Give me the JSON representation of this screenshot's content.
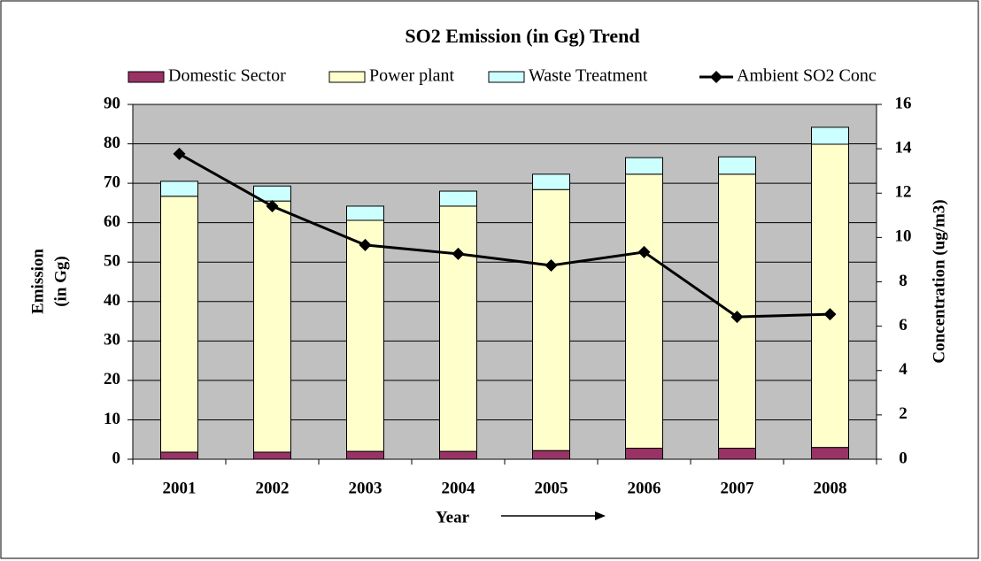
{
  "chart_data": {
    "type": "bar_line",
    "title": "SO2 Emission (in Gg) Trend",
    "x_label": "Year",
    "y_label": [
      "Emission",
      "(in Gg)"
    ],
    "y2_label": "Concentration (ug/m3)",
    "categories": [
      "2001",
      "2002",
      "2003",
      "2004",
      "2005",
      "2006",
      "2007",
      "2008"
    ],
    "series": [
      {
        "name": "Domestic Sector",
        "color": "#993366",
        "values": [
          1.8,
          1.8,
          2.0,
          2.0,
          2.2,
          2.8,
          2.8,
          3.0
        ]
      },
      {
        "name": "Power plant",
        "color": "#ffffcc",
        "values": [
          64.9,
          63.7,
          58.6,
          62.2,
          66.2,
          69.5,
          69.5,
          76.9
        ]
      },
      {
        "name": "Waste Treatment",
        "color": "#ccffff",
        "values": [
          3.8,
          3.8,
          3.6,
          3.8,
          3.9,
          4.2,
          4.4,
          4.3
        ]
      },
      {
        "name": "Ambient SO2 Conc",
        "color": "#000000",
        "axis": "y2",
        "values": [
          13.77,
          11.41,
          9.66,
          9.26,
          8.74,
          9.34,
          6.42,
          6.54
        ]
      }
    ],
    "ylim": [
      0,
      90
    ],
    "yticks": [
      0,
      10,
      20,
      30,
      40,
      50,
      60,
      70,
      80,
      90
    ],
    "y2lim": [
      0,
      16
    ],
    "y2ticks": [
      0,
      2,
      4,
      6,
      8,
      10,
      12,
      14,
      16
    ],
    "grid": true
  }
}
